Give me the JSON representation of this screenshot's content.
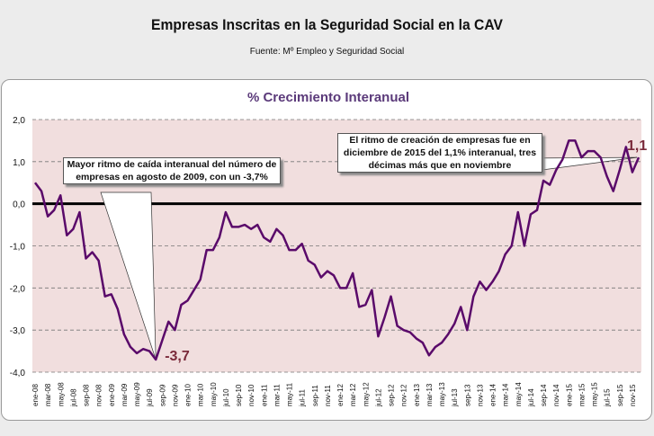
{
  "header": {
    "title": "Empresas Inscritas en la Seguridad Social en la CAV",
    "source": "Fuente: Mº Empleo y Seguridad Social"
  },
  "chart_data": {
    "type": "line",
    "title": "% Crecimiento Interanual",
    "ylim": [
      -4.0,
      2.0
    ],
    "yticks": [
      "2,0",
      "1,0",
      "0,0",
      "-1,0",
      "-2,0",
      "-3,0",
      "-4,0"
    ],
    "grid": true,
    "colors": {
      "line": "#5a0a6a",
      "plot_bg": "#f1dede",
      "title": "#5b3a7a",
      "label": "#7a2a3a"
    },
    "xtick_labels": [
      "ene-08",
      "mar-08",
      "may-08",
      "jul-08",
      "sep-08",
      "nov-08",
      "ene-09",
      "mar-09",
      "may-09",
      "jul-09",
      "sep-09",
      "nov-09",
      "ene-10",
      "mar-10",
      "may-10",
      "jul-10",
      "sep-10",
      "nov-10",
      "ene-11",
      "mar-11",
      "may-11",
      "jul-11",
      "sep-11",
      "nov-11",
      "ene-12",
      "mar-12",
      "may-12",
      "jul-12",
      "sep-12",
      "nov-12",
      "ene-13",
      "mar-13",
      "may-13",
      "jul-13",
      "sep-13",
      "nov-13",
      "ene-14",
      "mar-14",
      "may-14",
      "jul-14",
      "sep-14",
      "nov-14",
      "ene-15",
      "mar-15",
      "may-15",
      "jul-15",
      "sep-15",
      "nov-15"
    ],
    "values": [
      0.5,
      0.3,
      -0.3,
      -0.15,
      0.2,
      -0.75,
      -0.6,
      -0.2,
      -1.3,
      -1.15,
      -1.35,
      -2.2,
      -2.15,
      -2.5,
      -3.1,
      -3.4,
      -3.55,
      -3.45,
      -3.5,
      -3.7,
      -3.25,
      -2.8,
      -3.0,
      -2.4,
      -2.3,
      -2.05,
      -1.8,
      -1.1,
      -1.1,
      -0.8,
      -0.2,
      -0.55,
      -0.55,
      -0.5,
      -0.6,
      -0.5,
      -0.8,
      -0.9,
      -0.6,
      -0.75,
      -1.1,
      -1.1,
      -0.95,
      -1.35,
      -1.45,
      -1.75,
      -1.6,
      -1.7,
      -2.0,
      -2.0,
      -1.65,
      -2.45,
      -2.4,
      -2.05,
      -3.15,
      -2.7,
      -2.2,
      -2.9,
      -3.0,
      -3.05,
      -3.2,
      -3.3,
      -3.6,
      -3.4,
      -3.3,
      -3.1,
      -2.85,
      -2.45,
      -3.0,
      -2.2,
      -1.85,
      -2.05,
      -1.85,
      -1.6,
      -1.2,
      -1.0,
      -0.2,
      -1.0,
      -0.25,
      -0.15,
      0.55,
      0.45,
      0.8,
      1.05,
      1.5,
      1.5,
      1.1,
      1.25,
      1.25,
      1.1,
      0.65,
      0.3,
      0.8,
      1.35,
      0.75,
      1.1
    ],
    "annotations": {
      "min_label": "-3,7",
      "last_label": "1,1",
      "min_callout": "Mayor ritmo de caída interanual del número de empresas en agosto de 2009, con un -3,7%",
      "last_callout": "El ritmo de creación de empresas fue en diciembre de 2015 del 1,1% interanual, tres décimas más que en noviembre"
    }
  }
}
